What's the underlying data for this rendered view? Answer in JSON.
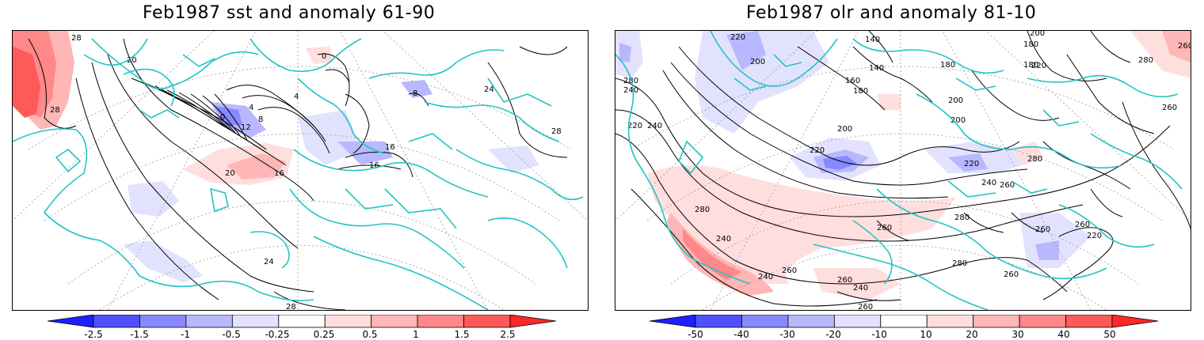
{
  "left_panel": {
    "title": "Feb1987 sst and anomaly 61-90",
    "contour_labels": [
      "28",
      "28",
      "20",
      "0",
      "4",
      "8",
      "12",
      "16",
      "16",
      "20",
      "24",
      "24",
      "28",
      "28",
      "16",
      "4",
      "0",
      "8"
    ],
    "colorbar": {
      "labels": [
        "-2.5",
        "-1.5",
        "-1",
        "-0.5",
        "-0.25",
        "0.25",
        "0.5",
        "1",
        "1.5",
        "2.5"
      ],
      "colors": [
        "#1f1fff",
        "#5050ff",
        "#8888ff",
        "#b8b8ff",
        "#e2e2ff",
        "#ffffff",
        "#ffdede",
        "#ffb6b6",
        "#ff8888",
        "#ff5a5a",
        "#ff2828"
      ]
    }
  },
  "right_panel": {
    "title": "Feb1987 olr and anomaly 81-10",
    "contour_labels": [
      "220",
      "200",
      "140",
      "140",
      "160",
      "180",
      "180",
      "200",
      "180",
      "200",
      "220",
      "280",
      "240",
      "240",
      "220",
      "200",
      "200",
      "220",
      "180",
      "220",
      "280",
      "260",
      "280",
      "240",
      "260",
      "260",
      "280",
      "280",
      "240",
      "260",
      "260",
      "240",
      "260",
      "240",
      "280",
      "220",
      "260",
      "260",
      "260",
      "260"
    ],
    "colorbar": {
      "labels": [
        "-50",
        "-40",
        "-30",
        "-20",
        "-10",
        "10",
        "20",
        "30",
        "40",
        "50"
      ],
      "colors": [
        "#1f1fff",
        "#5050ff",
        "#8888ff",
        "#b8b8ff",
        "#e2e2ff",
        "#ffffff",
        "#ffdede",
        "#ffb6b6",
        "#ff8888",
        "#ff5a5a",
        "#ff2828"
      ]
    }
  },
  "colors": {
    "coastline": "#22c4c4",
    "contour": "#000000",
    "grid": "#9a9a9a"
  }
}
